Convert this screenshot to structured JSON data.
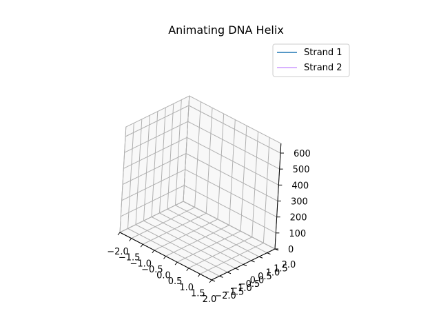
{
  "chart_data": {
    "type": "line",
    "projection": "3d",
    "title": "Animating DNA Helix",
    "xlabel": "",
    "ylabel": "",
    "zlabel": "",
    "xlim": [
      -2.0,
      2.0
    ],
    "ylim": [
      -2.0,
      2.0
    ],
    "zlim": [
      0,
      600
    ],
    "x_ticks": [
      "−2.0",
      "−1.5",
      "−1.0",
      "−0.5",
      "0.0",
      "0.5",
      "1.0",
      "1.5",
      "2.0"
    ],
    "y_ticks": [
      "−2.0",
      "−1.5",
      "−1.0",
      "−0.5",
      "0.0",
      "0.5",
      "1.0",
      "1.5",
      "2.0"
    ],
    "z_ticks": [
      "0",
      "100",
      "200",
      "300",
      "400",
      "500",
      "600"
    ],
    "grid": true,
    "legend_position": "top-right",
    "series": [
      {
        "name": "Strand 1",
        "color": "#1f77b4",
        "x": [],
        "y": [],
        "z": []
      },
      {
        "name": "Strand 2",
        "color": "#cc99ff",
        "x": [],
        "y": [],
        "z": []
      }
    ]
  }
}
